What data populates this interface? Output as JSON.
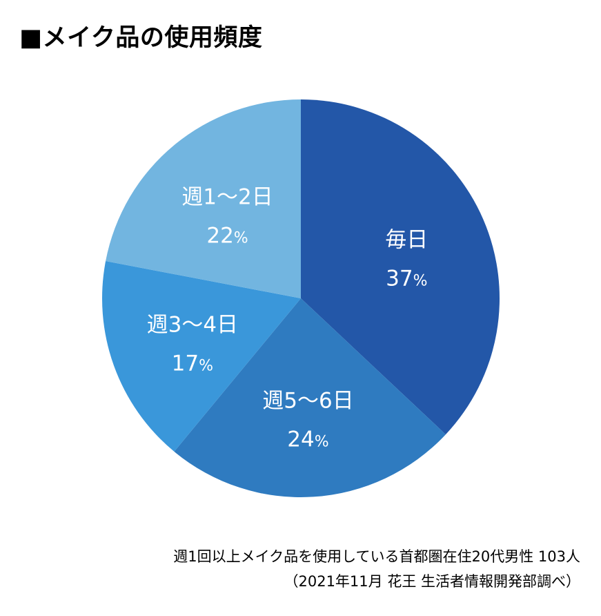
{
  "title": "■メイク品の使用頻度",
  "chart_data": {
    "type": "pie",
    "title": "■メイク品の使用頻度",
    "slices": [
      {
        "label": "毎日",
        "value": 37,
        "color": "#2357a8"
      },
      {
        "label": "週5〜6日",
        "value": 24,
        "color": "#2f7bc0"
      },
      {
        "label": "週3〜4日",
        "value": 17,
        "color": "#3a97da"
      },
      {
        "label": "週1〜2日",
        "value": 22,
        "color": "#72b5e0"
      }
    ],
    "unit": "%"
  },
  "footnotes": {
    "line1": "週1回以上メイク品を使用している首都圏在住20代男性 103人",
    "line2": "（2021年11月 花王 生活者情報開発部調べ）"
  }
}
